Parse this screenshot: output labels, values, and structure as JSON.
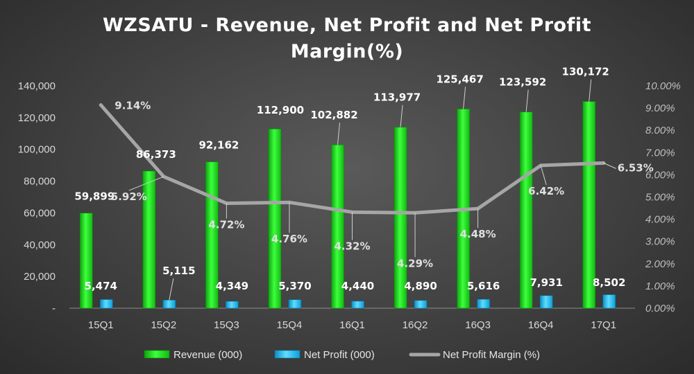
{
  "chart_data": {
    "type": "bar",
    "title_line1": "WZSATU - Revenue, Net Profit and Net Profit",
    "title_line2": "Margin(%)",
    "categories": [
      "15Q1",
      "15Q2",
      "15Q3",
      "15Q4",
      "16Q1",
      "16Q2",
      "16Q3",
      "16Q4",
      "17Q1"
    ],
    "series": [
      {
        "name": "Revenue (000)",
        "type": "bar",
        "axis": "left",
        "values": [
          59899,
          86373,
          92162,
          112900,
          102882,
          113977,
          125467,
          123592,
          130172
        ],
        "labels": [
          "59,899",
          "86,373",
          "92,162",
          "112,900",
          "102,882",
          "113,977",
          "125,467",
          "123,592",
          "130,172"
        ],
        "color": "#22ee22"
      },
      {
        "name": "Net Profit  (000)",
        "type": "bar",
        "axis": "left",
        "values": [
          5474,
          5115,
          4349,
          5370,
          4440,
          4890,
          5616,
          7931,
          8502
        ],
        "labels": [
          "5,474",
          "5,115",
          "4,349",
          "5,370",
          "4,440",
          "4,890",
          "5,616",
          "7,931",
          "8,502"
        ],
        "color": "#22c4f5"
      },
      {
        "name": "Net Profit Margin (%)",
        "type": "line",
        "axis": "right",
        "values": [
          9.14,
          5.92,
          4.72,
          4.76,
          4.32,
          4.29,
          4.48,
          6.42,
          6.53
        ],
        "labels": [
          "9.14%",
          "5.92%",
          "4.72%",
          "4.76%",
          "4.32%",
          "4.29%",
          "4.48%",
          "6.42%",
          "6.53%"
        ],
        "color": "#a6a6a6"
      }
    ],
    "y_left": {
      "range": [
        0,
        140000
      ],
      "ticks": [
        {
          "v": 0,
          "t": "-"
        },
        {
          "v": 20000,
          "t": "20,000"
        },
        {
          "v": 40000,
          "t": "40,000"
        },
        {
          "v": 60000,
          "t": "60,000"
        },
        {
          "v": 80000,
          "t": "80,000"
        },
        {
          "v": 100000,
          "t": "100,000"
        },
        {
          "v": 120000,
          "t": "120,000"
        },
        {
          "v": 140000,
          "t": "140,000"
        }
      ]
    },
    "y_right": {
      "range": [
        0,
        10
      ],
      "ticks": [
        {
          "v": 0,
          "t": "0.00%"
        },
        {
          "v": 1,
          "t": "1.00%"
        },
        {
          "v": 2,
          "t": "2.00%"
        },
        {
          "v": 3,
          "t": "3.00%"
        },
        {
          "v": 4,
          "t": "4.00%"
        },
        {
          "v": 5,
          "t": "5.00%"
        },
        {
          "v": 6,
          "t": "6.00%"
        },
        {
          "v": 7,
          "t": "7.00%"
        },
        {
          "v": 8,
          "t": "8.00%"
        },
        {
          "v": 9,
          "t": "9.00%"
        },
        {
          "v": 10,
          "t": "10.00%"
        }
      ]
    },
    "grid": false,
    "legend_position": "bottom"
  }
}
